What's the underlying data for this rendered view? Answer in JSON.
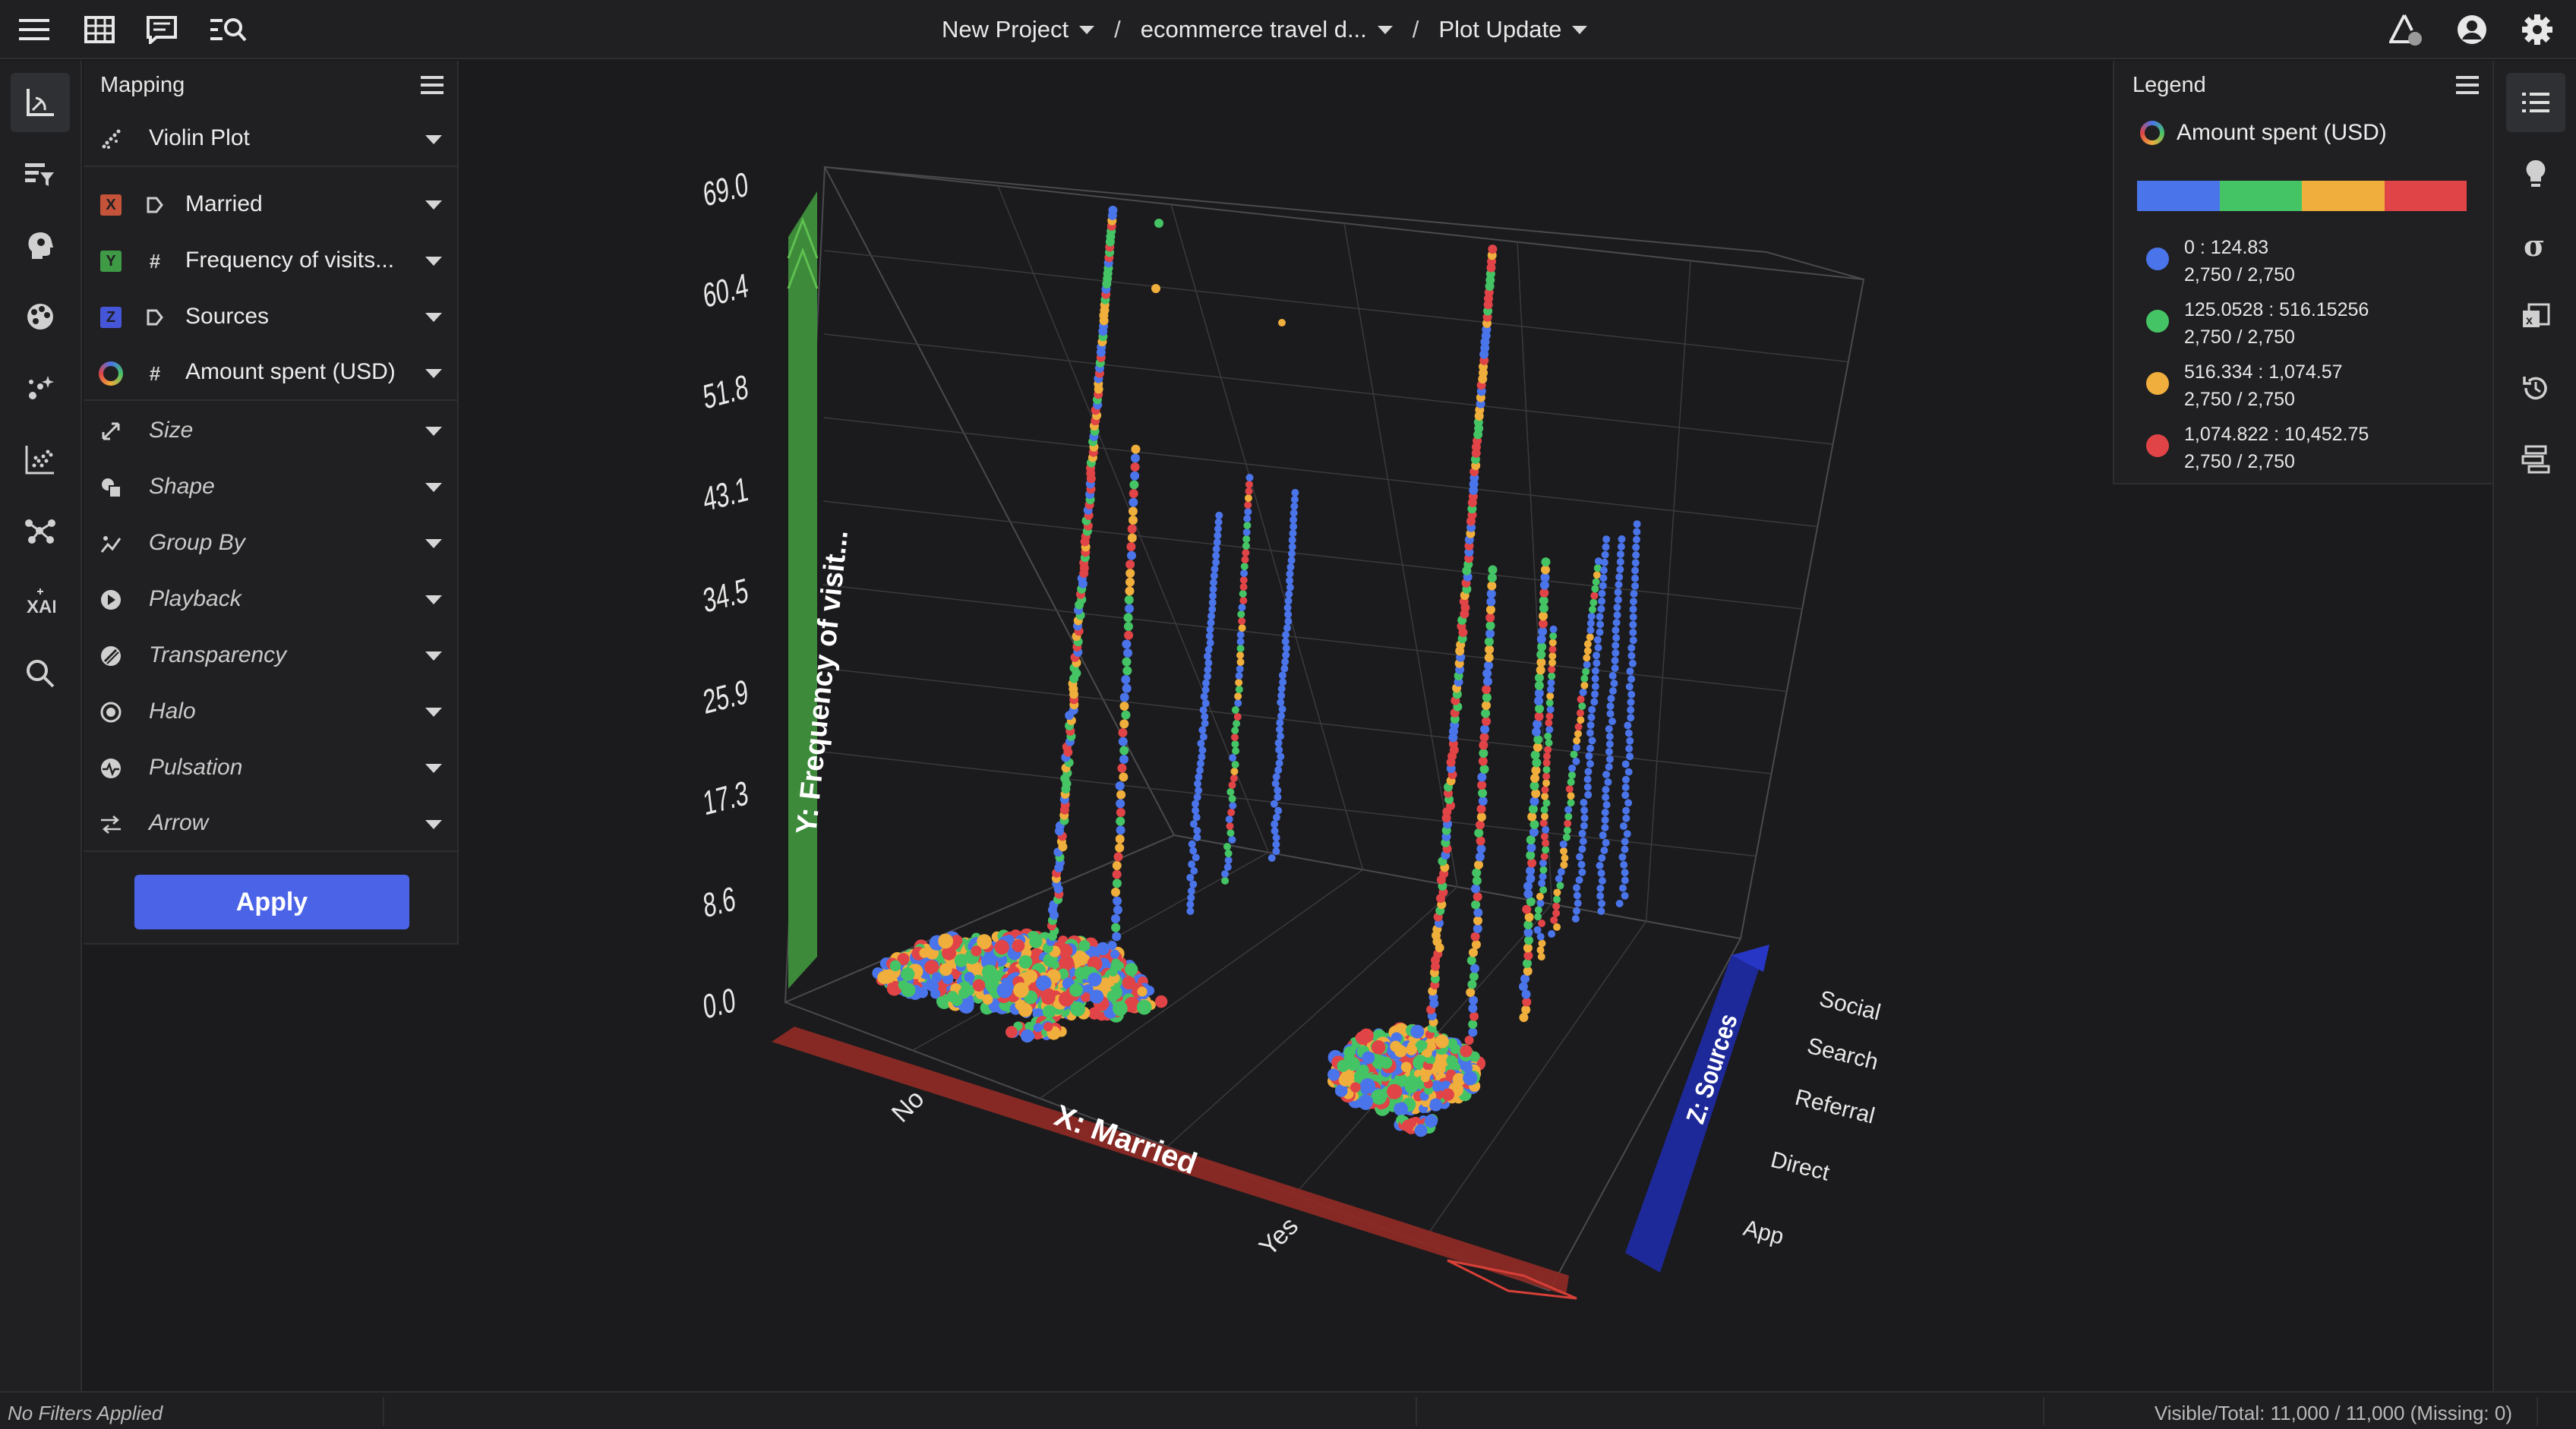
{
  "topbar": {
    "breadcrumb": [
      {
        "label": "New Project"
      },
      {
        "label": "ecommerce travel d..."
      },
      {
        "label": "Plot Update"
      }
    ],
    "separator": "/"
  },
  "mapping": {
    "title": "Mapping",
    "plot_type": "Violin Plot",
    "axes": [
      {
        "badge": "X",
        "badge_color": "#c4533a",
        "kind": "categorical-icon",
        "label": "Married"
      },
      {
        "badge": "Y",
        "badge_color": "#3f9a46",
        "kind": "numeric-icon",
        "label": "Frequency of visits..."
      },
      {
        "badge": "Z",
        "badge_color": "#4656d8",
        "kind": "categorical-icon",
        "label": "Sources"
      },
      {
        "badge": "color-ring",
        "badge_color": "",
        "kind": "numeric-icon",
        "label": "Amount spent (USD)"
      }
    ],
    "options": [
      {
        "icon": "resize-icon",
        "label": "Size"
      },
      {
        "icon": "shape-icon",
        "label": "Shape"
      },
      {
        "icon": "group-by-icon",
        "label": "Group By"
      },
      {
        "icon": "playback-icon",
        "label": "Playback"
      },
      {
        "icon": "transparency-icon",
        "label": "Transparency"
      },
      {
        "icon": "halo-icon",
        "label": "Halo"
      },
      {
        "icon": "pulsation-icon",
        "label": "Pulsation"
      },
      {
        "icon": "arrow-icon",
        "label": "Arrow"
      }
    ],
    "apply_label": "Apply"
  },
  "legend": {
    "title": "Legend",
    "field": "Amount spent (USD)",
    "colors": [
      "#4a74e9",
      "#45c465",
      "#f0ae3c",
      "#e04447"
    ],
    "items": [
      {
        "range": "0 : 124.83",
        "count": "2,750 / 2,750",
        "color": "#4a74e9"
      },
      {
        "range": "125.0528 : 516.15256",
        "count": "2,750 / 2,750",
        "color": "#45c465"
      },
      {
        "range": "516.334 : 1,074.57",
        "count": "2,750 / 2,750",
        "color": "#f0ae3c"
      },
      {
        "range": "1,074.822 : 10,452.75",
        "count": "2,750 / 2,750",
        "color": "#e04447"
      }
    ]
  },
  "chart_data": {
    "type": "scatter",
    "subtype": "3d-violin",
    "x_axis": {
      "label": "X: Married",
      "categories": [
        "No",
        "Yes"
      ],
      "color": "#8c2a25"
    },
    "y_axis": {
      "label": "Y: Frequency of visit...",
      "ticks": [
        "0.0",
        "8.6",
        "17.3",
        "25.9",
        "34.5",
        "43.1",
        "51.8",
        "60.4",
        "69.0"
      ],
      "range": [
        0,
        69
      ],
      "color": "#3c8a3a"
    },
    "z_axis": {
      "label": "Z: Sources",
      "categories": [
        "App",
        "Direct",
        "Referral",
        "Search",
        "Social"
      ],
      "color": "#1f2aa0"
    },
    "color_by": "Amount spent (USD)"
  },
  "status": {
    "filters": "No Filters Applied",
    "visible": "Visible/Total: 11,000 / 11,000 (Missing: 0)"
  }
}
